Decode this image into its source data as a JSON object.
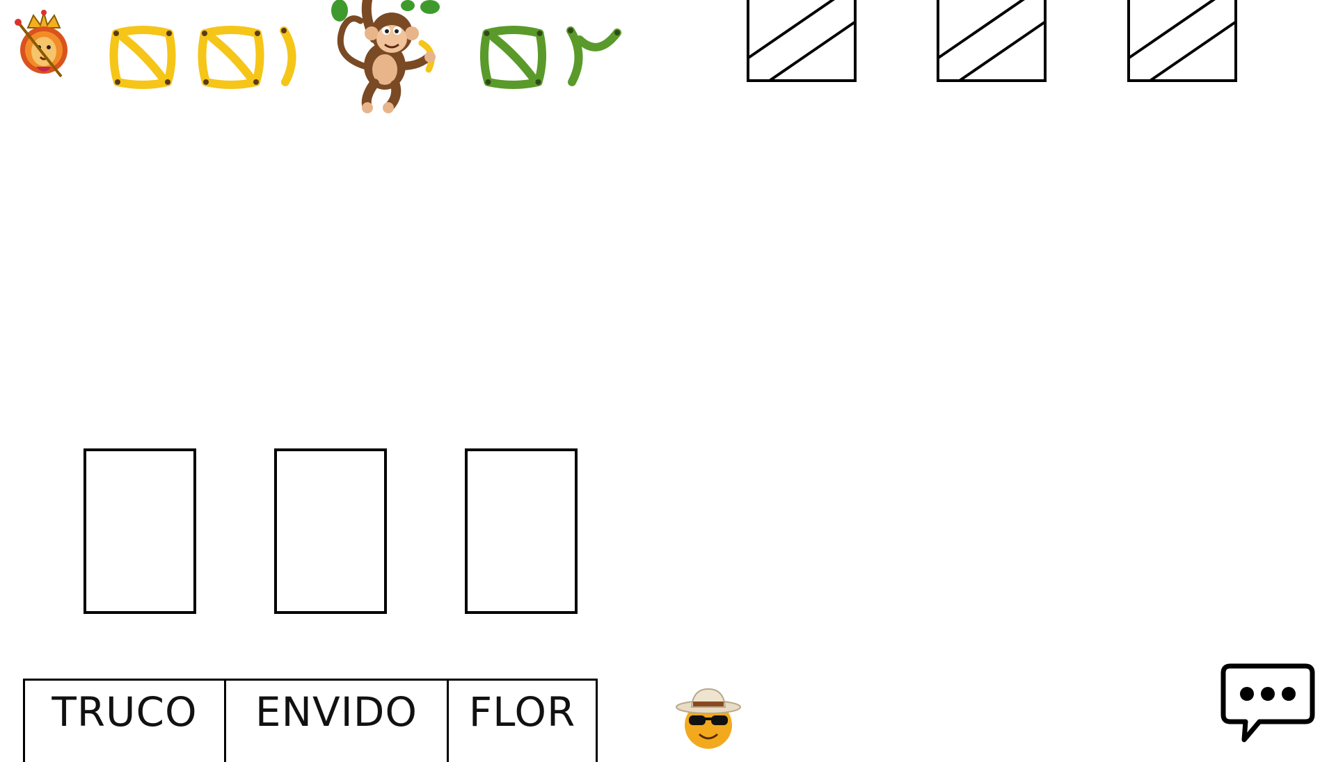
{
  "scoreboard": {
    "opponent_avatar": "lion-king-icon",
    "opponent_bananas": {
      "icon": "yellow-banana-icon",
      "groups_of_four": 2,
      "singles": 1
    },
    "center_icon": "monkey-with-banana-icon",
    "player_bananas": {
      "icon": "green-banana-icon",
      "groups_of_four": 1,
      "singles": 2
    },
    "colors": {
      "yellow_banana": "#f5c518",
      "green_banana": "#5a9a2a"
    }
  },
  "opponent_hand": {
    "cards_face_down": 3
  },
  "player_hand": {
    "card_slots": 3
  },
  "actions": {
    "truco": "TRUCO",
    "envido": "ENVIDO",
    "flor": "FLOR"
  },
  "player": {
    "avatar": "cool-sunglasses-emoji-icon"
  },
  "chat": {
    "icon": "chat-bubble-ellipsis-icon"
  }
}
